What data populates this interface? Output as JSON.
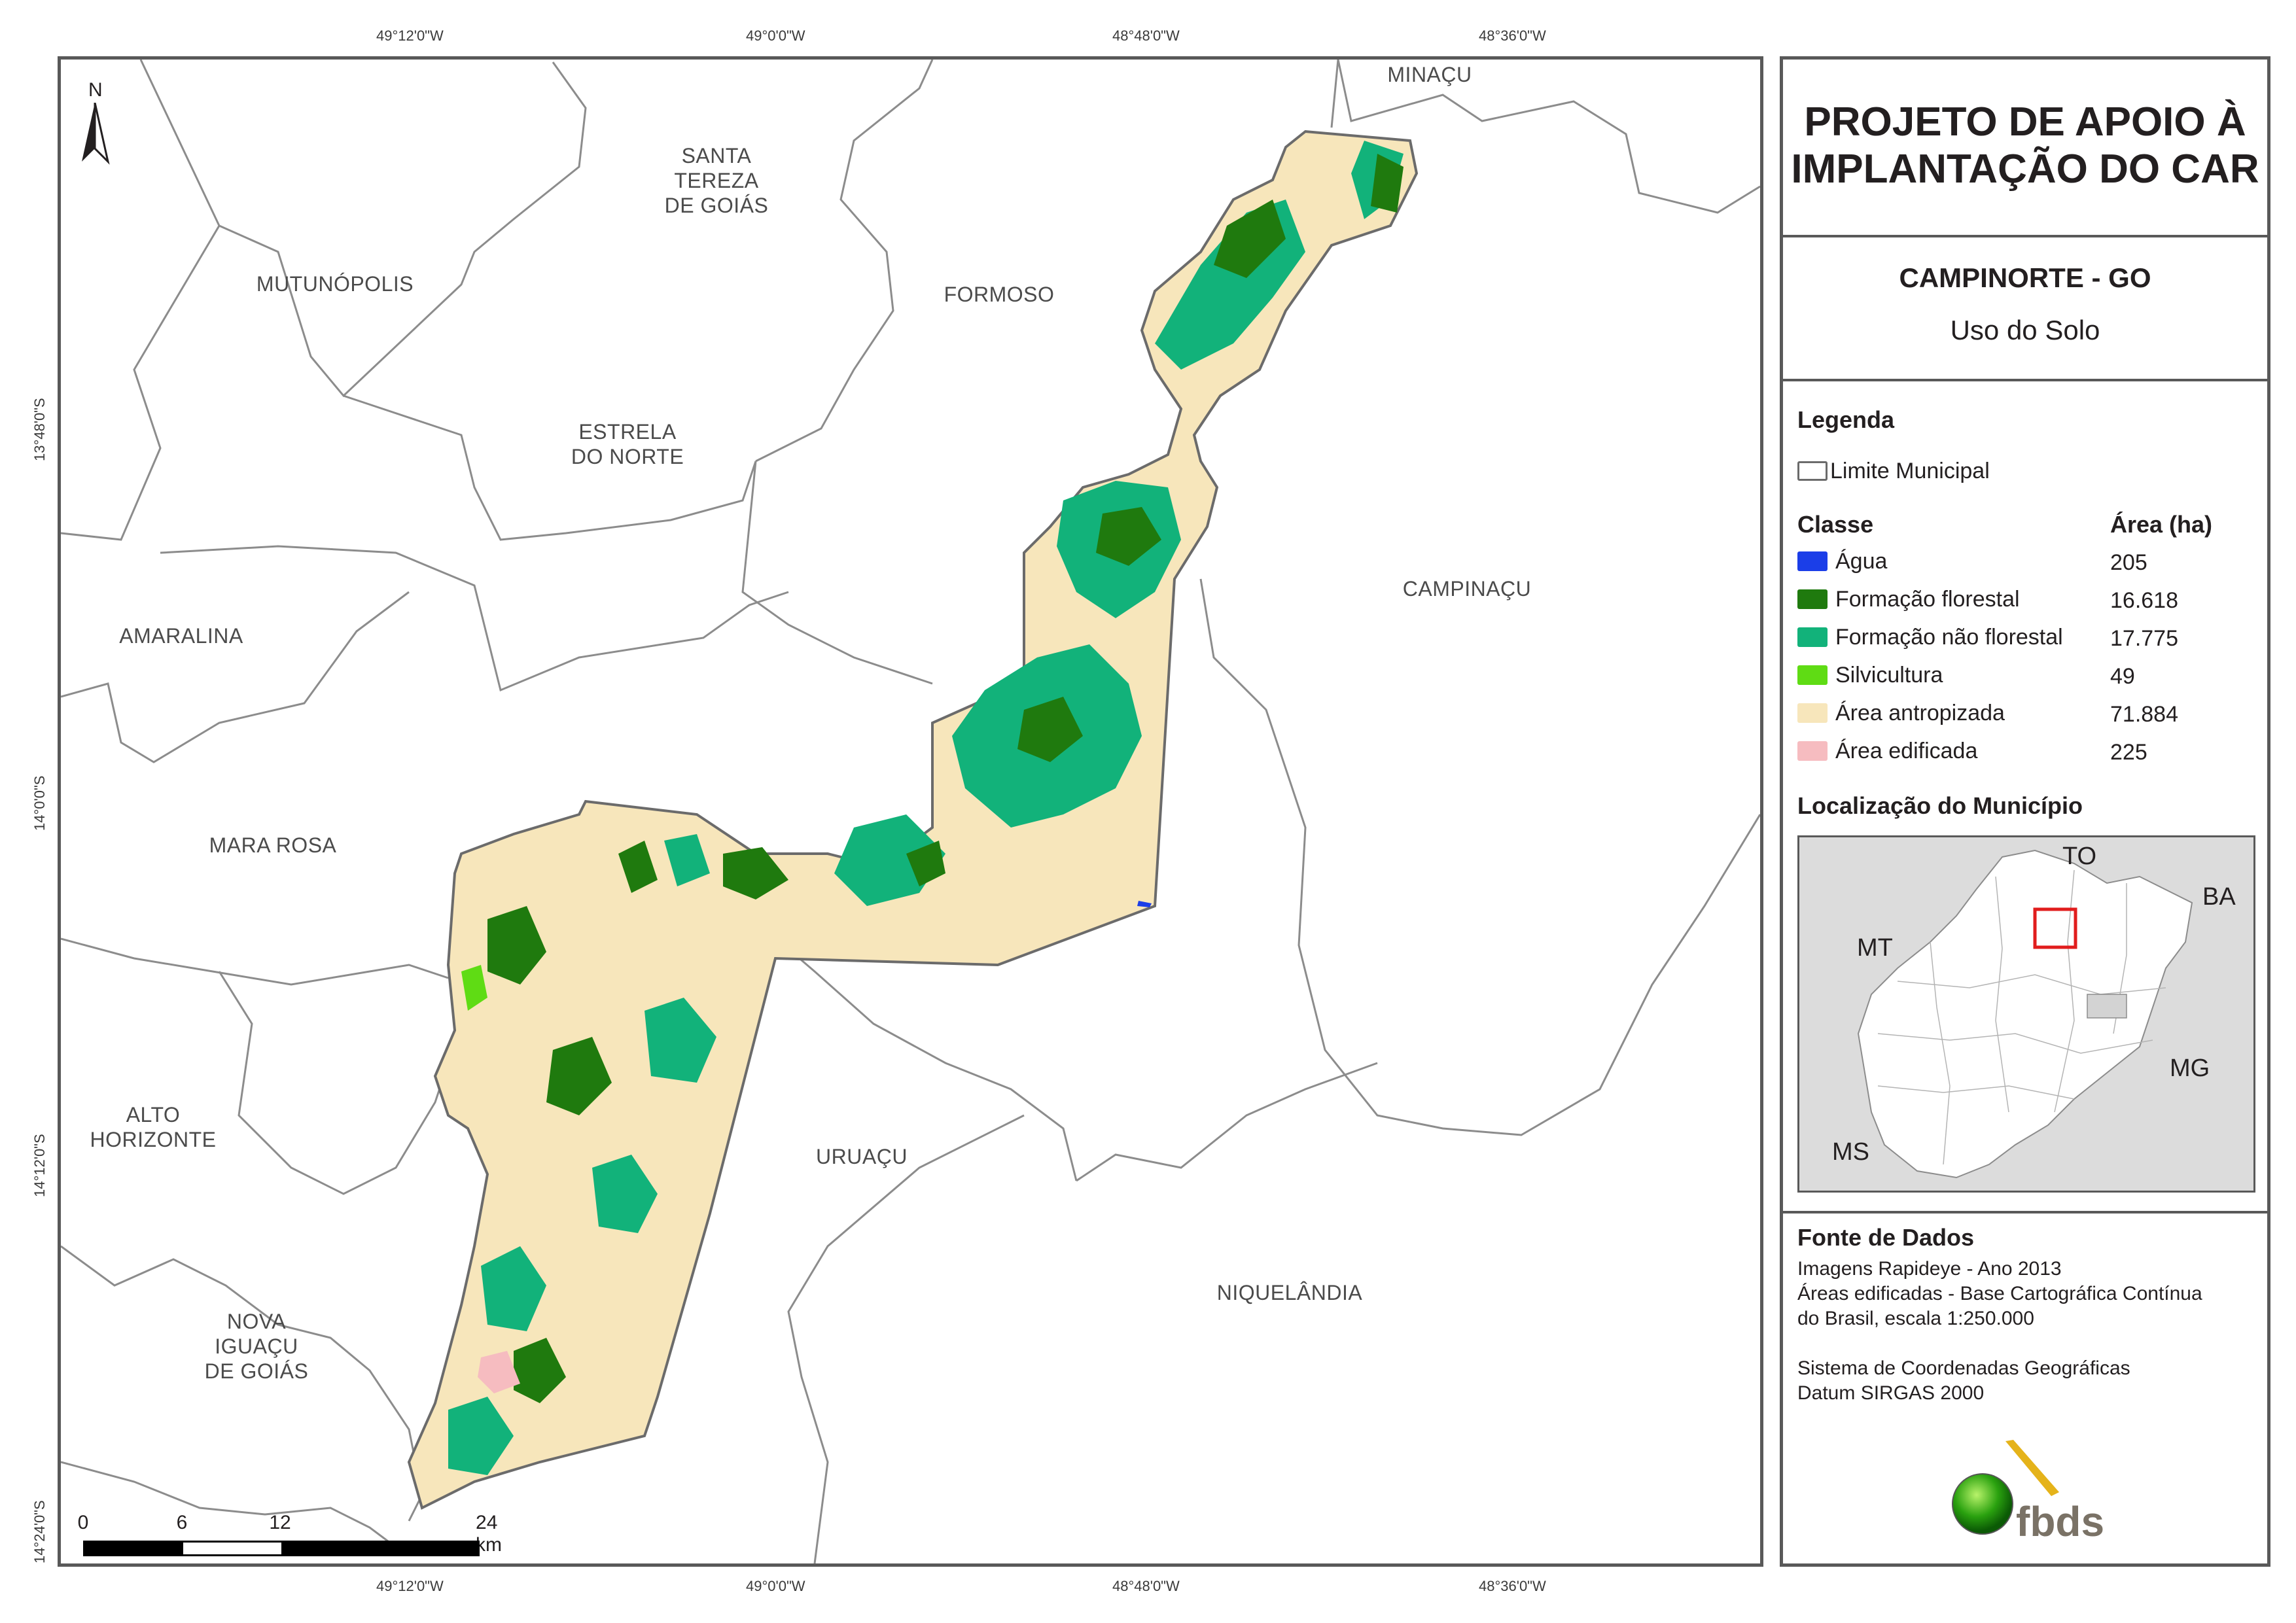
{
  "header": {
    "title": "PROJETO DE APOIO À IMPLANTAÇÃO DO CAR",
    "municipality": "CAMPINORTE - GO",
    "map_theme": "Uso do Solo"
  },
  "coordinates": {
    "top": [
      "49°12'0\"W",
      "49°0'0\"W",
      "48°48'0\"W",
      "48°36'0\"W"
    ],
    "bottom": [
      "49°12'0\"W",
      "49°0'0\"W",
      "48°48'0\"W",
      "48°36'0\"W"
    ],
    "left": [
      "13°48'0\"S",
      "14°0'0\"S",
      "14°12'0\"S",
      "14°24'0\"S"
    ]
  },
  "north_arrow": {
    "label": "N",
    "icon": "north-arrow-icon"
  },
  "municipalities": {
    "minacu": "MINAÇU",
    "santa_tereza": "SANTA\nTEREZA\nDE GOIÁS",
    "mutunopolis": "MUTUNÓPOLIS",
    "formoso": "FORMOSO",
    "estrela_do_norte": "ESTRELA\nDO NORTE",
    "amaralina": "AMARALINA",
    "campinacu": "CAMPINAÇU",
    "mara_rosa": "MARA ROSA",
    "alto_horizonte": "ALTO\nHORIZONTE",
    "uruacu": "URUAÇU",
    "niquelandia": "NIQUELÂNDIA",
    "nova_iguacu": "NOVA\nIGUAÇU\nDE GOIÁS"
  },
  "scale_bar": {
    "labels": [
      "0",
      "6",
      "12",
      "24 km"
    ]
  },
  "legend": {
    "heading": "Legenda",
    "boundary_label": "Limite Municipal",
    "class_header": "Classe",
    "area_header": "Área (ha)",
    "classes": [
      {
        "label": "Água",
        "area": "205",
        "color": "#1b3ee8"
      },
      {
        "label": "Formação florestal",
        "area": "16.618",
        "color": "#1f7a0e"
      },
      {
        "label": "Formação não florestal",
        "area": "17.775",
        "color": "#12b27a"
      },
      {
        "label": "Silvicultura",
        "area": "49",
        "color": "#5fdc14"
      },
      {
        "label": "Área antropizada",
        "area": "71.884",
        "color": "#f7e6bb"
      },
      {
        "label": "Área edificada",
        "area": "225",
        "color": "#f6bcc0"
      }
    ]
  },
  "location": {
    "heading": "Localização do Município",
    "states": {
      "to": "TO",
      "ba": "BA",
      "mt": "MT",
      "mg": "MG",
      "ms": "MS"
    }
  },
  "sources": {
    "heading": "Fonte de Dados",
    "lines": "Imagens Rapideye - Ano 2013\nÁreas edificadas - Base Cartográfica Contínua\ndo Brasil, escala 1:250.000",
    "crs": "Sistema de Coordenadas Geográficas\nDatum SIRGAS 2000"
  },
  "logo": {
    "text": "fbds",
    "icon": "fbds-logo-icon"
  }
}
